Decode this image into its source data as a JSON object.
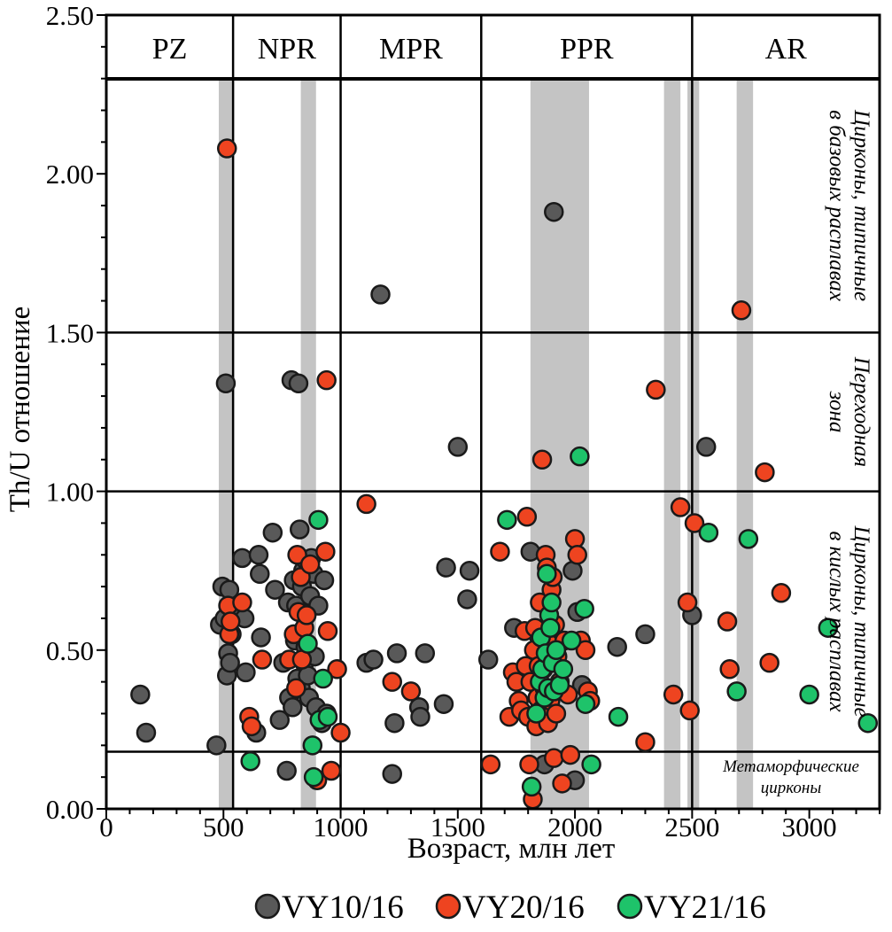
{
  "colors": {
    "VY10/16": "#595959",
    "VY20/16": "#ee4420",
    "VY21/16": "#1ec36a",
    "band": "#c4c4c4",
    "marker_edge": "#1a1a1a"
  },
  "chart_data": {
    "type": "scatter",
    "xlabel": "Возраст, млн лет",
    "ylabel": "Th/U отношение",
    "xlim": [
      0,
      3300
    ],
    "ylim": [
      0,
      2.5
    ],
    "x_ticks": [
      0,
      500,
      1000,
      1500,
      2000,
      2500,
      3000
    ],
    "x_tick_labels": [
      "0",
      "500",
      "1000",
      "1500",
      "2000",
      "2500",
      "3000"
    ],
    "y_ticks": [
      0,
      0.5,
      1.0,
      1.5,
      2.0,
      2.5
    ],
    "y_tick_labels": [
      "0.00",
      "0.50",
      "1.00",
      "1.50",
      "2.00",
      "2.50"
    ],
    "era_boundaries": [
      541,
      1000,
      1600,
      2500
    ],
    "eras": [
      {
        "label": "PZ",
        "from": 0,
        "to": 541
      },
      {
        "label": "NPR",
        "from": 541,
        "to": 1000
      },
      {
        "label": "MPR",
        "from": 1000,
        "to": 1600
      },
      {
        "label": "PPR",
        "from": 1600,
        "to": 2500
      },
      {
        "label": "AR",
        "from": 2500,
        "to": 3300
      }
    ],
    "shaded_age_bands": [
      [
        480,
        545
      ],
      [
        830,
        895
      ],
      [
        1810,
        2060
      ],
      [
        2380,
        2450
      ],
      [
        2480,
        2530
      ],
      [
        2690,
        2760
      ]
    ],
    "zone_boundaries": [
      1.5,
      1.0,
      0.18
    ],
    "zones": [
      {
        "label_lines": [
          "Цирконы, типичные",
          "в базовых расплавах"
        ],
        "from": 1.5,
        "to": 2.3
      },
      {
        "label_lines": [
          "Переходная",
          "зона"
        ],
        "from": 1.0,
        "to": 1.5
      },
      {
        "label_lines": [
          "Цирконы, типичные",
          "в кислых расплавах"
        ],
        "from": 0.18,
        "to": 1.0
      },
      {
        "label_lines": [
          "Метаморфические",
          "цирконы"
        ],
        "from": 0,
        "to": 0.18
      }
    ],
    "legend_position": "bottom",
    "series": [
      {
        "name": "VY10/16",
        "points": [
          [
            145,
            0.36
          ],
          [
            170,
            0.24
          ],
          [
            470,
            0.2
          ],
          [
            485,
            0.58
          ],
          [
            495,
            0.7
          ],
          [
            505,
            0.6
          ],
          [
            510,
            1.34
          ],
          [
            515,
            0.42
          ],
          [
            520,
            0.49
          ],
          [
            525,
            0.69
          ],
          [
            528,
            0.46
          ],
          [
            535,
            0.55
          ],
          [
            540,
            0.62
          ],
          [
            580,
            0.79
          ],
          [
            590,
            0.6
          ],
          [
            595,
            0.43
          ],
          [
            640,
            0.24
          ],
          [
            650,
            0.8
          ],
          [
            655,
            0.74
          ],
          [
            660,
            0.54
          ],
          [
            710,
            0.87
          ],
          [
            720,
            0.69
          ],
          [
            740,
            0.28
          ],
          [
            755,
            0.46
          ],
          [
            770,
            0.12
          ],
          [
            775,
            0.65
          ],
          [
            780,
            0.35
          ],
          [
            790,
            1.35
          ],
          [
            795,
            0.32
          ],
          [
            800,
            0.72
          ],
          [
            805,
            0.53
          ],
          [
            810,
            0.64
          ],
          [
            815,
            0.41
          ],
          [
            820,
            1.34
          ],
          [
            825,
            0.88
          ],
          [
            830,
            0.38
          ],
          [
            835,
            0.7
          ],
          [
            840,
            0.75
          ],
          [
            845,
            0.46
          ],
          [
            850,
            0.51
          ],
          [
            855,
            0.78
          ],
          [
            860,
            0.42
          ],
          [
            865,
            0.35
          ],
          [
            870,
            0.67
          ],
          [
            875,
            0.79
          ],
          [
            885,
            0.74
          ],
          [
            890,
            0.48
          ],
          [
            895,
            0.32
          ],
          [
            905,
            0.64
          ],
          [
            920,
            0.27
          ],
          [
            930,
            0.72
          ],
          [
            940,
            0.3
          ],
          [
            1110,
            0.46
          ],
          [
            1140,
            0.47
          ],
          [
            1170,
            1.62
          ],
          [
            1220,
            0.11
          ],
          [
            1230,
            0.27
          ],
          [
            1240,
            0.49
          ],
          [
            1335,
            0.32
          ],
          [
            1340,
            0.29
          ],
          [
            1360,
            0.49
          ],
          [
            1440,
            0.33
          ],
          [
            1450,
            0.76
          ],
          [
            1500,
            1.14
          ],
          [
            1540,
            0.66
          ],
          [
            1550,
            0.75
          ],
          [
            1630,
            0.47
          ],
          [
            1740,
            0.57
          ],
          [
            1810,
            0.81
          ],
          [
            1840,
            0.55
          ],
          [
            1870,
            0.14
          ],
          [
            1910,
            1.88
          ],
          [
            1990,
            0.75
          ],
          [
            2000,
            0.09
          ],
          [
            2010,
            0.62
          ],
          [
            2030,
            0.39
          ],
          [
            2180,
            0.51
          ],
          [
            2300,
            0.55
          ],
          [
            2500,
            0.61
          ],
          [
            2560,
            1.14
          ]
        ]
      },
      {
        "name": "VY20/16",
        "points": [
          [
            515,
            2.08
          ],
          [
            520,
            0.64
          ],
          [
            525,
            0.55
          ],
          [
            530,
            0.59
          ],
          [
            580,
            0.65
          ],
          [
            610,
            0.29
          ],
          [
            620,
            0.26
          ],
          [
            665,
            0.47
          ],
          [
            780,
            0.47
          ],
          [
            800,
            0.55
          ],
          [
            810,
            0.38
          ],
          [
            815,
            0.8
          ],
          [
            820,
            0.62
          ],
          [
            830,
            0.73
          ],
          [
            835,
            0.47
          ],
          [
            845,
            0.57
          ],
          [
            855,
            0.61
          ],
          [
            870,
            0.77
          ],
          [
            900,
            0.09
          ],
          [
            935,
            0.81
          ],
          [
            940,
            1.35
          ],
          [
            945,
            0.56
          ],
          [
            960,
            0.12
          ],
          [
            985,
            0.44
          ],
          [
            1000,
            0.24
          ],
          [
            1110,
            0.96
          ],
          [
            1220,
            0.4
          ],
          [
            1300,
            0.37
          ],
          [
            1640,
            0.14
          ],
          [
            1680,
            0.81
          ],
          [
            1720,
            0.29
          ],
          [
            1735,
            0.43
          ],
          [
            1750,
            0.4
          ],
          [
            1760,
            0.34
          ],
          [
            1770,
            0.31
          ],
          [
            1785,
            0.56
          ],
          [
            1790,
            0.45
          ],
          [
            1795,
            0.92
          ],
          [
            1800,
            0.29
          ],
          [
            1805,
            0.14
          ],
          [
            1810,
            0.4
          ],
          [
            1820,
            0.03
          ],
          [
            1825,
            0.5
          ],
          [
            1830,
            0.57
          ],
          [
            1835,
            0.26
          ],
          [
            1840,
            0.35
          ],
          [
            1845,
            0.45
          ],
          [
            1850,
            0.65
          ],
          [
            1855,
            0.31
          ],
          [
            1860,
            1.1
          ],
          [
            1865,
            0.44
          ],
          [
            1870,
            0.38
          ],
          [
            1875,
            0.8
          ],
          [
            1880,
            0.76
          ],
          [
            1885,
            0.27
          ],
          [
            1890,
            0.52
          ],
          [
            1895,
            0.34
          ],
          [
            1900,
            0.69
          ],
          [
            1905,
            0.73
          ],
          [
            1910,
            0.16
          ],
          [
            1915,
            0.58
          ],
          [
            1920,
            0.3
          ],
          [
            1925,
            0.48
          ],
          [
            1935,
            0.4
          ],
          [
            1945,
            0.08
          ],
          [
            1955,
            0.53
          ],
          [
            1970,
            0.36
          ],
          [
            1980,
            0.17
          ],
          [
            2000,
            0.85
          ],
          [
            2010,
            0.8
          ],
          [
            2025,
            0.53
          ],
          [
            2045,
            0.5
          ],
          [
            2055,
            0.37
          ],
          [
            2065,
            0.34
          ],
          [
            2300,
            0.21
          ],
          [
            2345,
            1.32
          ],
          [
            2420,
            0.36
          ],
          [
            2450,
            0.95
          ],
          [
            2480,
            0.65
          ],
          [
            2490,
            0.31
          ],
          [
            2510,
            0.9
          ],
          [
            2650,
            0.59
          ],
          [
            2660,
            0.44
          ],
          [
            2710,
            1.57
          ],
          [
            2810,
            1.06
          ],
          [
            2830,
            0.46
          ],
          [
            2880,
            0.68
          ]
        ]
      },
      {
        "name": "VY21/16",
        "points": [
          [
            615,
            0.15
          ],
          [
            860,
            0.52
          ],
          [
            880,
            0.2
          ],
          [
            885,
            0.1
          ],
          [
            905,
            0.91
          ],
          [
            910,
            0.28
          ],
          [
            925,
            0.41
          ],
          [
            945,
            0.29
          ],
          [
            1710,
            0.91
          ],
          [
            1815,
            0.07
          ],
          [
            1835,
            0.3
          ],
          [
            1850,
            0.4
          ],
          [
            1855,
            0.54
          ],
          [
            1860,
            0.44
          ],
          [
            1870,
            0.35
          ],
          [
            1875,
            0.49
          ],
          [
            1880,
            0.74
          ],
          [
            1885,
            0.38
          ],
          [
            1890,
            0.61
          ],
          [
            1895,
            0.57
          ],
          [
            1900,
            0.65
          ],
          [
            1905,
            0.46
          ],
          [
            1910,
            0.37
          ],
          [
            1920,
            0.5
          ],
          [
            1935,
            0.39
          ],
          [
            1950,
            0.44
          ],
          [
            1985,
            0.53
          ],
          [
            2020,
            1.11
          ],
          [
            2040,
            0.63
          ],
          [
            2045,
            0.33
          ],
          [
            2070,
            0.14
          ],
          [
            2185,
            0.29
          ],
          [
            2570,
            0.87
          ],
          [
            2690,
            0.37
          ],
          [
            2740,
            0.85
          ],
          [
            3000,
            0.36
          ],
          [
            3080,
            0.57
          ],
          [
            3250,
            0.27
          ]
        ]
      }
    ]
  }
}
